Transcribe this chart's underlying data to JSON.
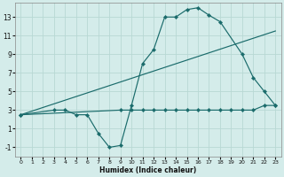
{
  "xlabel": "Humidex (Indice chaleur)",
  "bg_color": "#d4ecea",
  "grid_color": "#b8d8d4",
  "line_color": "#1a6b6b",
  "series3_x": [
    0,
    3,
    4,
    5,
    6,
    7,
    8,
    9,
    10,
    11,
    12,
    13,
    14,
    15,
    16,
    17,
    18,
    20,
    21,
    22,
    23
  ],
  "series3_y": [
    2.5,
    3.0,
    3.0,
    2.5,
    2.5,
    0.5,
    -1.0,
    -0.8,
    3.5,
    8.0,
    9.5,
    13.0,
    13.0,
    13.8,
    14.0,
    13.2,
    12.5,
    9.0,
    6.5,
    5.0,
    3.5
  ],
  "series2_x": [
    0,
    23
  ],
  "series2_y": [
    2.5,
    11.5
  ],
  "series1_x": [
    0,
    9,
    10,
    11,
    12,
    13,
    14,
    15,
    16,
    17,
    18,
    19,
    20,
    21,
    22,
    23
  ],
  "series1_y": [
    2.5,
    3.0,
    3.0,
    3.0,
    3.0,
    3.0,
    3.0,
    3.0,
    3.0,
    3.0,
    3.0,
    3.0,
    3.0,
    3.0,
    3.5,
    3.5
  ],
  "xlim": [
    -0.5,
    23.5
  ],
  "ylim": [
    -2.0,
    14.5
  ],
  "xticks": [
    0,
    1,
    2,
    3,
    4,
    5,
    6,
    7,
    8,
    9,
    10,
    11,
    12,
    13,
    14,
    15,
    16,
    17,
    18,
    19,
    20,
    21,
    22,
    23
  ],
  "yticks": [
    -1,
    1,
    3,
    5,
    7,
    9,
    11,
    13
  ]
}
